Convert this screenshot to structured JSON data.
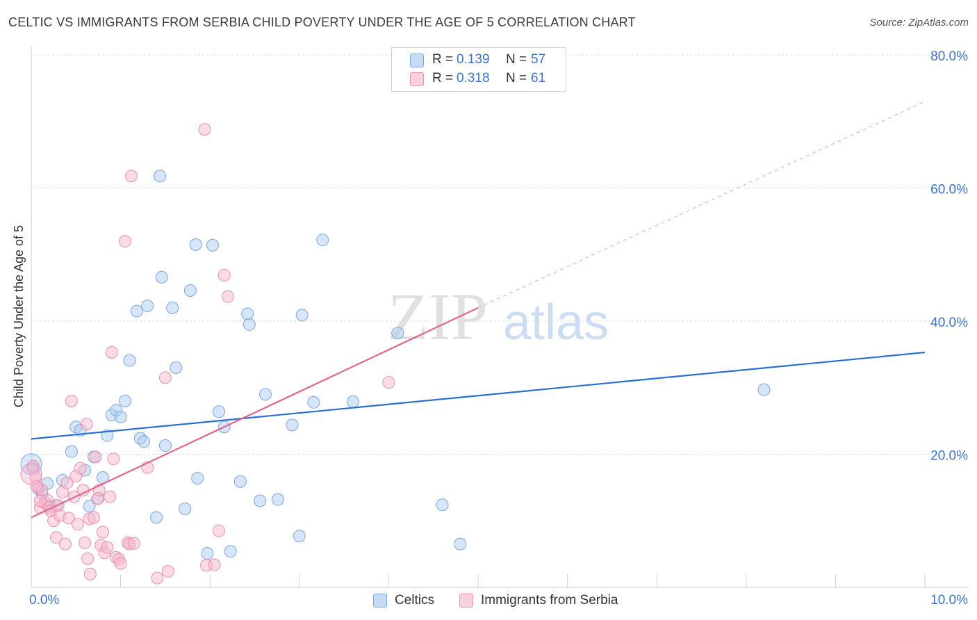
{
  "title": "CELTIC VS IMMIGRANTS FROM SERBIA CHILD POVERTY UNDER THE AGE OF 5 CORRELATION CHART",
  "source": "Source: ZipAtlas.com",
  "watermark": {
    "zip": "ZIP",
    "atlas": "atlas"
  },
  "legend": {
    "rows": [
      {
        "r_label": "R =",
        "r_value": "0.139",
        "n_label": "N =",
        "n_value": "57",
        "color": "#aecbf0"
      },
      {
        "r_label": "R =",
        "r_value": "0.318",
        "n_label": "N =",
        "n_value": "61",
        "color": "#f7b8cb"
      }
    ]
  },
  "bottom_legend": [
    {
      "label": "Celtics",
      "color": "#aecbf0"
    },
    {
      "label": "Immigrants from Serbia",
      "color": "#f7b8cb"
    }
  ],
  "chart_data": {
    "type": "scatter",
    "title": "CELTIC VS IMMIGRANTS FROM SERBIA CHILD POVERTY UNDER THE AGE OF 5 CORRELATION CHART",
    "xlabel": "",
    "ylabel": "Child Poverty Under the Age of 5",
    "xlim": [
      0,
      10
    ],
    "ylim": [
      0,
      80
    ],
    "x_tick_labels": [
      {
        "value": 0,
        "label": "0.0%"
      },
      {
        "value": 10,
        "label": "10.0%"
      }
    ],
    "y_tick_labels": [
      {
        "value": 20,
        "label": "20.0%"
      },
      {
        "value": 40,
        "label": "40.0%"
      },
      {
        "value": 60,
        "label": "60.0%"
      },
      {
        "value": 80,
        "label": "80.0%"
      }
    ],
    "grid": true,
    "legend_position": "top-center",
    "series": [
      {
        "name": "Celtics",
        "color": "#7aa7e0",
        "fill": "#aecbf0",
        "line_color": "#2a6fcf",
        "trend": {
          "x": [
            0,
            10
          ],
          "y": [
            22.3,
            35.3
          ],
          "dashed_extension": false
        },
        "points": [
          [
            0.02,
            17.9
          ],
          [
            0.08,
            14.8
          ],
          [
            0.12,
            14.1
          ],
          [
            0.18,
            15.6
          ],
          [
            0.2,
            12.3
          ],
          [
            0.28,
            12.3
          ],
          [
            0.35,
            16.1
          ],
          [
            0.45,
            20.4
          ],
          [
            0.5,
            24.1
          ],
          [
            0.55,
            23.6
          ],
          [
            0.6,
            17.6
          ],
          [
            0.65,
            12.2
          ],
          [
            0.7,
            19.6
          ],
          [
            0.75,
            13.4
          ],
          [
            0.8,
            16.5
          ],
          [
            0.85,
            22.8
          ],
          [
            0.9,
            25.9
          ],
          [
            0.95,
            26.6
          ],
          [
            1.0,
            25.6
          ],
          [
            1.05,
            28.0
          ],
          [
            1.1,
            34.1
          ],
          [
            1.18,
            41.5
          ],
          [
            1.22,
            22.4
          ],
          [
            1.26,
            21.9
          ],
          [
            1.3,
            42.3
          ],
          [
            1.4,
            10.5
          ],
          [
            1.44,
            61.8
          ],
          [
            1.46,
            46.6
          ],
          [
            1.5,
            21.3
          ],
          [
            1.58,
            42.0
          ],
          [
            1.62,
            33.0
          ],
          [
            1.72,
            11.8
          ],
          [
            1.78,
            44.6
          ],
          [
            1.84,
            51.5
          ],
          [
            1.86,
            16.4
          ],
          [
            1.97,
            5.1
          ],
          [
            2.03,
            51.4
          ],
          [
            2.1,
            26.4
          ],
          [
            2.16,
            24.1
          ],
          [
            2.23,
            5.4
          ],
          [
            2.34,
            15.9
          ],
          [
            2.42,
            41.1
          ],
          [
            2.44,
            39.5
          ],
          [
            2.56,
            13.0
          ],
          [
            2.62,
            29.0
          ],
          [
            2.76,
            13.2
          ],
          [
            2.92,
            24.4
          ],
          [
            3.0,
            7.7
          ],
          [
            3.03,
            40.9
          ],
          [
            3.16,
            27.8
          ],
          [
            3.26,
            52.2
          ],
          [
            3.6,
            27.9
          ],
          [
            4.1,
            38.2
          ],
          [
            4.6,
            12.4
          ],
          [
            4.8,
            6.5
          ],
          [
            8.2,
            29.7
          ],
          [
            0.0,
            18.5
          ]
        ]
      },
      {
        "name": "Immigrants from Serbia",
        "color": "#ec8fab",
        "fill": "#f7b8cb",
        "line_color": "#e06590",
        "trend": {
          "x": [
            0,
            5
          ],
          "y": [
            10.5,
            42.0
          ],
          "dashed_extension": true,
          "extension_to": [
            10,
            73.0
          ]
        },
        "points": [
          [
            0.02,
            18.2
          ],
          [
            0.05,
            16.5
          ],
          [
            0.08,
            15.0
          ],
          [
            0.1,
            12.0
          ],
          [
            0.12,
            14.6
          ],
          [
            0.15,
            12.7
          ],
          [
            0.18,
            13.1
          ],
          [
            0.2,
            12.0
          ],
          [
            0.22,
            11.5
          ],
          [
            0.25,
            10.0
          ],
          [
            0.28,
            7.5
          ],
          [
            0.3,
            12.3
          ],
          [
            0.32,
            10.8
          ],
          [
            0.35,
            14.3
          ],
          [
            0.38,
            6.5
          ],
          [
            0.4,
            15.7
          ],
          [
            0.42,
            10.4
          ],
          [
            0.45,
            28.0
          ],
          [
            0.48,
            13.6
          ],
          [
            0.5,
            16.7
          ],
          [
            0.52,
            9.5
          ],
          [
            0.55,
            17.9
          ],
          [
            0.58,
            14.6
          ],
          [
            0.6,
            6.7
          ],
          [
            0.62,
            24.5
          ],
          [
            0.63,
            4.3
          ],
          [
            0.65,
            10.3
          ],
          [
            0.66,
            2.0
          ],
          [
            0.7,
            10.5
          ],
          [
            0.72,
            19.6
          ],
          [
            0.74,
            13.3
          ],
          [
            0.76,
            14.6
          ],
          [
            0.78,
            6.3
          ],
          [
            0.8,
            8.3
          ],
          [
            0.82,
            5.2
          ],
          [
            0.85,
            6.0
          ],
          [
            0.88,
            13.6
          ],
          [
            0.9,
            35.3
          ],
          [
            0.92,
            19.3
          ],
          [
            0.95,
            4.5
          ],
          [
            0.98,
            4.2
          ],
          [
            1.0,
            3.6
          ],
          [
            1.05,
            52.0
          ],
          [
            1.08,
            6.7
          ],
          [
            1.1,
            6.5
          ],
          [
            1.12,
            61.8
          ],
          [
            1.15,
            6.6
          ],
          [
            1.3,
            18.0
          ],
          [
            1.41,
            1.4
          ],
          [
            1.5,
            31.5
          ],
          [
            1.53,
            2.4
          ],
          [
            1.94,
            68.8
          ],
          [
            1.96,
            3.3
          ],
          [
            2.05,
            3.4
          ],
          [
            2.1,
            8.5
          ],
          [
            2.16,
            46.9
          ],
          [
            2.2,
            43.7
          ],
          [
            4.0,
            30.8
          ],
          [
            0.0,
            17.0
          ],
          [
            0.06,
            15.2
          ],
          [
            0.1,
            13.0
          ]
        ]
      }
    ]
  }
}
